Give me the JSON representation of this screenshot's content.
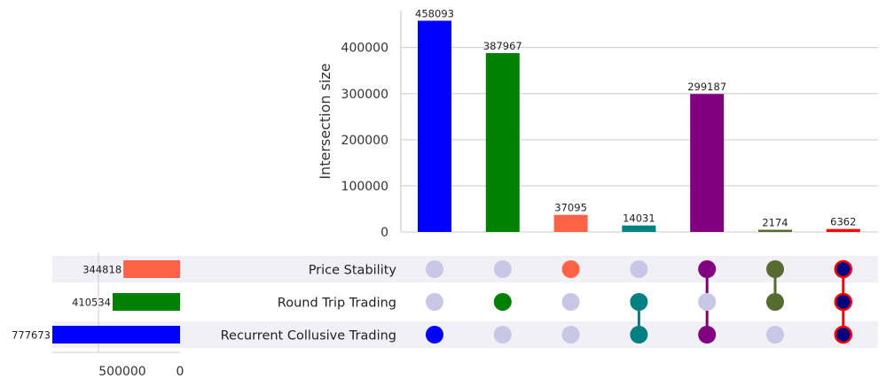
{
  "chart_data": {
    "type": "bar",
    "ylabel": "Intersection size",
    "ylim": [
      0,
      480000
    ],
    "yticks": [
      0,
      100000,
      200000,
      300000,
      400000
    ],
    "grid": true,
    "sets": [
      {
        "name": "Price Stability",
        "size": 344818,
        "color": "#ff6347"
      },
      {
        "name": "Round Trip Trading",
        "size": 410534,
        "color": "#008000"
      },
      {
        "name": "Recurrent Collusive Trading",
        "size": 777673,
        "color": "#0000ff"
      }
    ],
    "set_size_axis": {
      "ticks": [
        500000,
        0
      ],
      "max": 777673
    },
    "intersections": [
      {
        "value": 458093,
        "members": [
          2
        ],
        "color": "#0000ff"
      },
      {
        "value": 387967,
        "members": [
          1
        ],
        "color": "#008000"
      },
      {
        "value": 37095,
        "members": [
          0
        ],
        "color": "#ff6347"
      },
      {
        "value": 14031,
        "members": [
          1,
          2
        ],
        "color": "#008080"
      },
      {
        "value": 299187,
        "members": [
          0,
          2
        ],
        "color": "#800080"
      },
      {
        "value": 2174,
        "members": [
          0,
          1
        ],
        "color": "#556b2f"
      },
      {
        "value": 6362,
        "members": [
          0,
          1,
          2
        ],
        "color": "#ff0000",
        "dot_fill": "#000080",
        "dot_stroke": "#ff0000"
      }
    ],
    "inactive_dot_color": "#c8c8e6"
  }
}
